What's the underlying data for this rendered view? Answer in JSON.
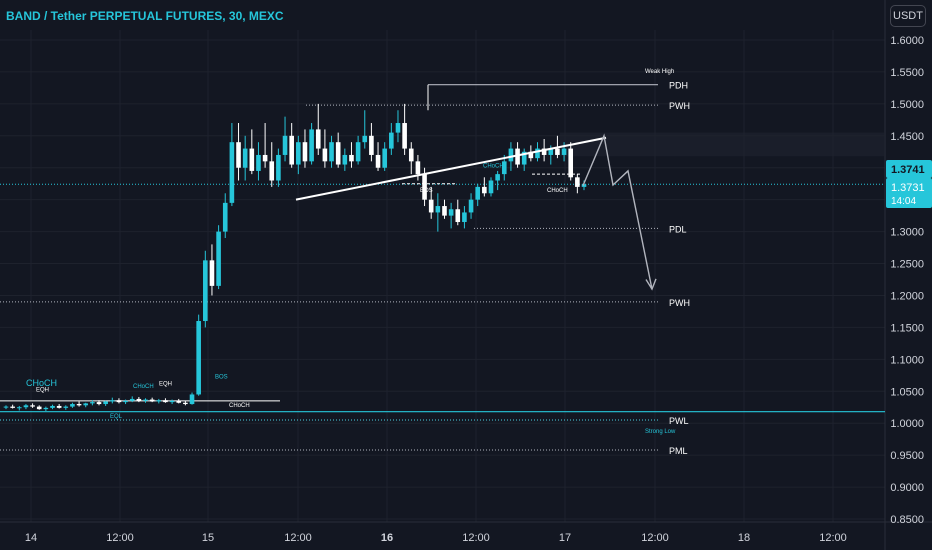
{
  "header": {
    "title": "BAND / Tether PERPETUAL FUTURES, 30, MEXC"
  },
  "currency_button": "USDT",
  "colors": {
    "background": "#131722",
    "up": "#26c6da",
    "down": "#ffffff",
    "text": "#d1d4dc",
    "grid": "#1e222d"
  },
  "price_badges": {
    "last_price": "1.3741",
    "close_price": "1.3731",
    "countdown": "14:04"
  },
  "chart_data": {
    "type": "candlestick",
    "title": "BAND / Tether PERPETUAL FUTURES, 30, MEXC",
    "y_axis": {
      "ticks": [
        "1.6000",
        "1.5500",
        "1.5000",
        "1.4500",
        "1.4000",
        "1.3500",
        "1.3000",
        "1.2500",
        "1.2000",
        "1.1500",
        "1.1000",
        "1.0500",
        "1.0000",
        "0.9500",
        "0.9000",
        "0.8500"
      ],
      "range": [
        0.85,
        1.6
      ]
    },
    "x_axis": {
      "ticks": [
        "14",
        "12:00",
        "15",
        "12:00",
        "16",
        "12:00",
        "17",
        "12:00",
        "18",
        "12:00"
      ]
    },
    "levels": [
      {
        "label": "PDH",
        "price": 1.53
      },
      {
        "label": "PWH",
        "price": 1.498
      },
      {
        "label": "PDL",
        "price": 1.305
      },
      {
        "label": "PWH",
        "price": 1.19
      },
      {
        "label": "PWL",
        "price": 1.005
      },
      {
        "label": "PML",
        "price": 0.958
      }
    ],
    "annotations": [
      "Weak High",
      "Strong Low",
      "BOS",
      "CHoCH",
      "EQH",
      "EQL",
      "BOS",
      "CHoCH",
      "CHoCH",
      "EQH",
      "CHoCH",
      "CHoCH"
    ],
    "current_price": 1.3741,
    "candles": [
      [
        1.025,
        1.028,
        1.022,
        1.026
      ],
      [
        1.026,
        1.029,
        1.023,
        1.024
      ],
      [
        1.024,
        1.027,
        1.02,
        1.025
      ],
      [
        1.025,
        1.03,
        1.022,
        1.028
      ],
      [
        1.028,
        1.031,
        1.024,
        1.026
      ],
      [
        1.026,
        1.028,
        1.021,
        1.022
      ],
      [
        1.022,
        1.026,
        1.019,
        1.024
      ],
      [
        1.024,
        1.029,
        1.022,
        1.027
      ],
      [
        1.027,
        1.03,
        1.023,
        1.024
      ],
      [
        1.024,
        1.028,
        1.021,
        1.026
      ],
      [
        1.026,
        1.032,
        1.024,
        1.03
      ],
      [
        1.03,
        1.034,
        1.026,
        1.028
      ],
      [
        1.028,
        1.032,
        1.025,
        1.031
      ],
      [
        1.031,
        1.036,
        1.028,
        1.033
      ],
      [
        1.033,
        1.036,
        1.028,
        1.03
      ],
      [
        1.03,
        1.035,
        1.027,
        1.034
      ],
      [
        1.034,
        1.04,
        1.031,
        1.036
      ],
      [
        1.036,
        1.039,
        1.031,
        1.033
      ],
      [
        1.033,
        1.037,
        1.03,
        1.035
      ],
      [
        1.035,
        1.042,
        1.033,
        1.038
      ],
      [
        1.038,
        1.041,
        1.033,
        1.035
      ],
      [
        1.035,
        1.039,
        1.032,
        1.037
      ],
      [
        1.037,
        1.04,
        1.033,
        1.034
      ],
      [
        1.034,
        1.038,
        1.031,
        1.036
      ],
      [
        1.036,
        1.039,
        1.032,
        1.033
      ],
      [
        1.033,
        1.037,
        1.03,
        1.035
      ],
      [
        1.035,
        1.038,
        1.031,
        1.032
      ],
      [
        1.032,
        1.035,
        1.028,
        1.03
      ],
      [
        1.03,
        1.048,
        1.029,
        1.045
      ],
      [
        1.045,
        1.17,
        1.043,
        1.16
      ],
      [
        1.16,
        1.27,
        1.15,
        1.255
      ],
      [
        1.255,
        1.28,
        1.2,
        1.215
      ],
      [
        1.215,
        1.31,
        1.21,
        1.3
      ],
      [
        1.3,
        1.36,
        1.29,
        1.345
      ],
      [
        1.345,
        1.47,
        1.34,
        1.44
      ],
      [
        1.44,
        1.47,
        1.38,
        1.4
      ],
      [
        1.4,
        1.45,
        1.38,
        1.43
      ],
      [
        1.43,
        1.46,
        1.39,
        1.395
      ],
      [
        1.395,
        1.44,
        1.38,
        1.42
      ],
      [
        1.42,
        1.47,
        1.4,
        1.41
      ],
      [
        1.41,
        1.44,
        1.37,
        1.38
      ],
      [
        1.38,
        1.43,
        1.37,
        1.42
      ],
      [
        1.42,
        1.48,
        1.41,
        1.45
      ],
      [
        1.45,
        1.47,
        1.4,
        1.405
      ],
      [
        1.405,
        1.45,
        1.39,
        1.44
      ],
      [
        1.44,
        1.46,
        1.4,
        1.41
      ],
      [
        1.41,
        1.47,
        1.405,
        1.46
      ],
      [
        1.46,
        1.5,
        1.42,
        1.43
      ],
      [
        1.43,
        1.46,
        1.4,
        1.41
      ],
      [
        1.41,
        1.45,
        1.4,
        1.44
      ],
      [
        1.44,
        1.455,
        1.4,
        1.405
      ],
      [
        1.405,
        1.43,
        1.395,
        1.42
      ],
      [
        1.42,
        1.44,
        1.4,
        1.41
      ],
      [
        1.41,
        1.45,
        1.405,
        1.44
      ],
      [
        1.44,
        1.49,
        1.43,
        1.45
      ],
      [
        1.45,
        1.47,
        1.41,
        1.42
      ],
      [
        1.42,
        1.44,
        1.395,
        1.4
      ],
      [
        1.4,
        1.44,
        1.395,
        1.43
      ],
      [
        1.43,
        1.47,
        1.42,
        1.455
      ],
      [
        1.455,
        1.49,
        1.44,
        1.47
      ],
      [
        1.47,
        1.5,
        1.42,
        1.43
      ],
      [
        1.43,
        1.44,
        1.39,
        1.41
      ],
      [
        1.41,
        1.42,
        1.38,
        1.39
      ],
      [
        1.39,
        1.4,
        1.34,
        1.35
      ],
      [
        1.35,
        1.37,
        1.32,
        1.33
      ],
      [
        1.33,
        1.36,
        1.3,
        1.34
      ],
      [
        1.34,
        1.35,
        1.32,
        1.325
      ],
      [
        1.325,
        1.345,
        1.305,
        1.335
      ],
      [
        1.335,
        1.35,
        1.31,
        1.315
      ],
      [
        1.315,
        1.34,
        1.305,
        1.33
      ],
      [
        1.33,
        1.36,
        1.32,
        1.35
      ],
      [
        1.35,
        1.375,
        1.34,
        1.37
      ],
      [
        1.37,
        1.385,
        1.355,
        1.36
      ],
      [
        1.36,
        1.385,
        1.355,
        1.38
      ],
      [
        1.38,
        1.395,
        1.365,
        1.39
      ],
      [
        1.39,
        1.42,
        1.38,
        1.41
      ],
      [
        1.41,
        1.44,
        1.395,
        1.43
      ],
      [
        1.43,
        1.44,
        1.4,
        1.405
      ],
      [
        1.405,
        1.43,
        1.395,
        1.425
      ],
      [
        1.425,
        1.435,
        1.41,
        1.415
      ],
      [
        1.415,
        1.44,
        1.41,
        1.43
      ],
      [
        1.43,
        1.445,
        1.41,
        1.42
      ],
      [
        1.42,
        1.435,
        1.405,
        1.43
      ],
      [
        1.43,
        1.45,
        1.415,
        1.42
      ],
      [
        1.42,
        1.44,
        1.41,
        1.43
      ],
      [
        1.43,
        1.44,
        1.38,
        1.385
      ],
      [
        1.385,
        1.39,
        1.36,
        1.37
      ],
      [
        1.37,
        1.38,
        1.365,
        1.3741
      ]
    ]
  }
}
